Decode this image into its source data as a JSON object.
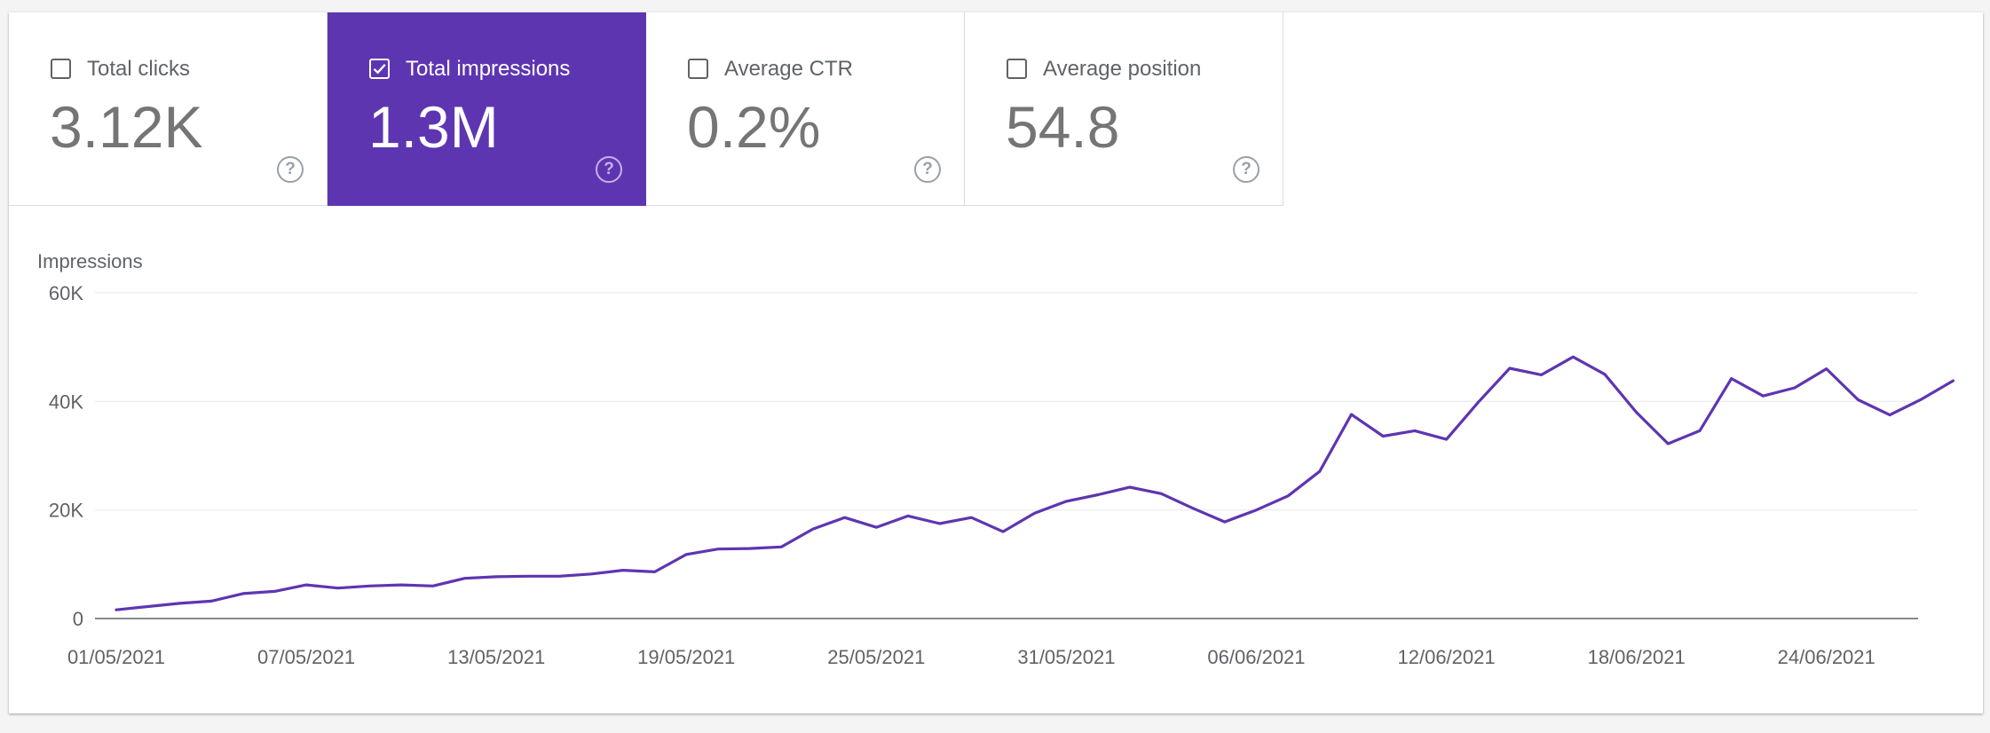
{
  "metrics": [
    {
      "label": "Total clicks",
      "value": "3.12K",
      "selected": false
    },
    {
      "label": "Total impressions",
      "value": "1.3M",
      "selected": true
    },
    {
      "label": "Average CTR",
      "value": "0.2%",
      "selected": false
    },
    {
      "label": "Average position",
      "value": "54.8",
      "selected": false
    }
  ],
  "help_icon": "?",
  "colors": {
    "accent": "#5e35b1",
    "line": "#5e35b1",
    "grid": "#e8eaed",
    "axis": "#5f6368"
  },
  "chart_data": {
    "type": "line",
    "ylabel": "Impressions",
    "ylim": [
      0,
      60000
    ],
    "y_ticks": [
      "0",
      "20K",
      "40K",
      "60K"
    ],
    "x_ticks": [
      "01/05/2021",
      "07/05/2021",
      "13/05/2021",
      "19/05/2021",
      "25/05/2021",
      "31/05/2021",
      "06/06/2021",
      "12/06/2021",
      "18/06/2021",
      "24/06/2021"
    ],
    "grid": true,
    "x_start": "01/05/2021",
    "x_end": "29/06/2021",
    "series": [
      {
        "values": [
          1600,
          2200,
          2800,
          3200,
          4600,
          5000,
          6200,
          5600,
          6000,
          6200,
          6000,
          7400,
          7700,
          7800,
          7800,
          8200,
          8900,
          8600,
          11800,
          12800,
          12900,
          13200,
          16500,
          18600,
          16800,
          18900,
          17500,
          18600,
          16000,
          19400,
          21600,
          22800,
          24200,
          23000,
          20300,
          17800,
          20000,
          22600,
          27100,
          37600,
          33600,
          34600,
          33000,
          39800,
          46100,
          44900,
          48200,
          45000,
          38000,
          32200,
          34600,
          44200,
          41000,
          42500,
          46000,
          40300,
          37500,
          40400,
          43800
        ]
      }
    ]
  }
}
